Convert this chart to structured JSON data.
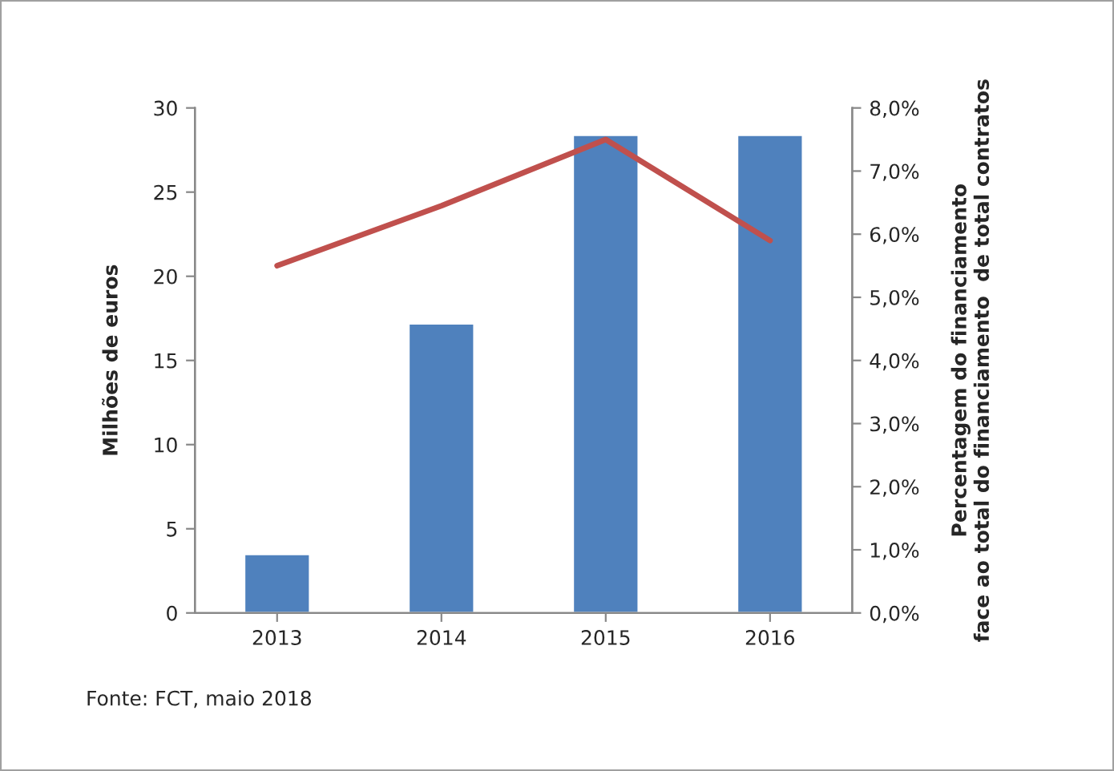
{
  "chart_data": {
    "type": "bar",
    "categories": [
      "2013",
      "2014",
      "2015",
      "2016"
    ],
    "series": [
      {
        "color": "#4f81bd",
        "values": [
          3.5,
          17.2,
          28.4,
          28.4
        ]
      },
      {
        "type": "line",
        "axis": "y2",
        "color": "#c0504d",
        "values": [
          5.5,
          6.45,
          7.5,
          5.9
        ]
      }
    ],
    "ylabel": "Milhões de euros",
    "y2label": "Percentagem do financiamento\nface ao total do financiamento  de total contratos",
    "ylim": [
      0,
      30
    ],
    "yticks": [
      0,
      5,
      10,
      15,
      20,
      25,
      30
    ],
    "y2lim": [
      0,
      8
    ],
    "y2ticks": [
      {
        "value": 0,
        "label": "0,0%"
      },
      {
        "value": 1,
        "label": "1,0%"
      },
      {
        "value": 2,
        "label": "2,0%"
      },
      {
        "value": 3,
        "label": "3,0%"
      },
      {
        "value": 4,
        "label": "4,0%"
      },
      {
        "value": 5,
        "label": "5,0%"
      },
      {
        "value": 6,
        "label": "6,0%"
      },
      {
        "value": 7,
        "label": "7,0%"
      },
      {
        "value": 8,
        "label": "8,0%"
      }
    ],
    "annotations": [
      "Fonte: FCT, maio 2018"
    ],
    "grid": false,
    "legend": false,
    "marker": "none",
    "line_style": "solid"
  }
}
